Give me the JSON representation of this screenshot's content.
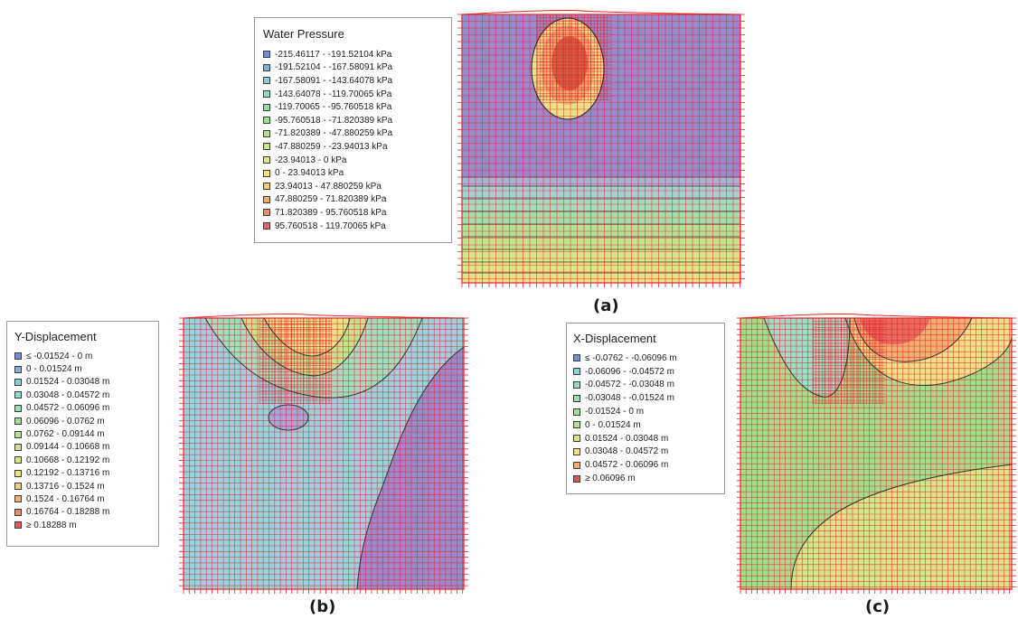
{
  "panels": {
    "a": {
      "caption": "(a)",
      "legend": {
        "title": "Water Pressure",
        "items": [
          {
            "label": "-215.46117 - -191.52104 kPa",
            "color": "#6f8fd6"
          },
          {
            "label": "-191.52104 - -167.58091 kPa",
            "color": "#7fb0da"
          },
          {
            "label": "-167.58091 - -143.64078 kPa",
            "color": "#8cd0d8"
          },
          {
            "label": "-143.64078 - -119.70065 kPa",
            "color": "#90dcc6"
          },
          {
            "label": "-119.70065 - -95.760518 kPa",
            "color": "#96deae"
          },
          {
            "label": "-95.760518 - -71.820389 kPa",
            "color": "#9ee09a"
          },
          {
            "label": "-71.820389 - -47.880259 kPa",
            "color": "#b2e290"
          },
          {
            "label": "-47.880259 - -23.94013 kPa",
            "color": "#c8e48c"
          },
          {
            "label": "-23.94013 - 0 kPa",
            "color": "#dee488"
          },
          {
            "label": "0 - 23.94013 kPa",
            "color": "#f0e482"
          },
          {
            "label": "23.94013 - 47.880259 kPa",
            "color": "#f4cc7c"
          },
          {
            "label": "47.880259 - 71.820389 kPa",
            "color": "#f0ae72"
          },
          {
            "label": "71.820389 - 95.760518 kPa",
            "color": "#e88e6c"
          },
          {
            "label": "95.760518 - 119.70065 kPa",
            "color": "#de6a6a"
          }
        ]
      }
    },
    "b": {
      "caption": "(b)",
      "legend": {
        "title": "Y-Displacement",
        "items": [
          {
            "label": "≤ -0.01524 - 0 m",
            "color": "#6f8fd6"
          },
          {
            "label": "0 - 0.01524 m",
            "color": "#7fb0da"
          },
          {
            "label": "0.01524 - 0.03048 m",
            "color": "#8cd0d8"
          },
          {
            "label": "0.03048 - 0.04572 m",
            "color": "#90dcc6"
          },
          {
            "label": "0.04572 - 0.06096 m",
            "color": "#96deae"
          },
          {
            "label": "0.06096 - 0.0762 m",
            "color": "#9ee09a"
          },
          {
            "label": "0.0762 - 0.09144 m",
            "color": "#b2e290"
          },
          {
            "label": "0.09144 - 0.10668 m",
            "color": "#c8e48c"
          },
          {
            "label": "0.10668 - 0.12192 m",
            "color": "#dee488"
          },
          {
            "label": "0.12192 - 0.13716 m",
            "color": "#f0e482"
          },
          {
            "label": "0.13716 - 0.1524 m",
            "color": "#f4cc7c"
          },
          {
            "label": "0.1524 - 0.16764 m",
            "color": "#f0ae72"
          },
          {
            "label": "0.16764 - 0.18288 m",
            "color": "#e88e6c"
          },
          {
            "label": "≥ 0.18288 m",
            "color": "#de5a5a"
          }
        ]
      }
    },
    "c": {
      "caption": "(c)",
      "legend": {
        "title": "X-Displacement",
        "items": [
          {
            "label": "≤ -0.0762 - -0.06096 m",
            "color": "#6f8fd6"
          },
          {
            "label": "-0.06096 - -0.04572 m",
            "color": "#8cd0d8"
          },
          {
            "label": "-0.04572 - -0.03048 m",
            "color": "#90dcc6"
          },
          {
            "label": "-0.03048 - -0.01524 m",
            "color": "#96deae"
          },
          {
            "label": "-0.01524 - 0 m",
            "color": "#9ee09a"
          },
          {
            "label": "0 - 0.01524 m",
            "color": "#b2e290"
          },
          {
            "label": "0.01524 - 0.03048 m",
            "color": "#dee488"
          },
          {
            "label": "0.03048 - 0.04572 m",
            "color": "#f0e482"
          },
          {
            "label": "0.04572 - 0.06096 m",
            "color": "#f0ae72"
          },
          {
            "label": "≥ 0.06096 m",
            "color": "#de5a5a"
          }
        ]
      }
    }
  },
  "colors": {
    "mesh": "#e8242a",
    "contour": "#333333",
    "purple": "#9a88cc",
    "light_blue": "#9fd0e0",
    "green": "#a8dc8c",
    "yellow_green": "#d6e48a",
    "yellow": "#eee088",
    "orange": "#f0b070",
    "red": "#e66a5e"
  }
}
